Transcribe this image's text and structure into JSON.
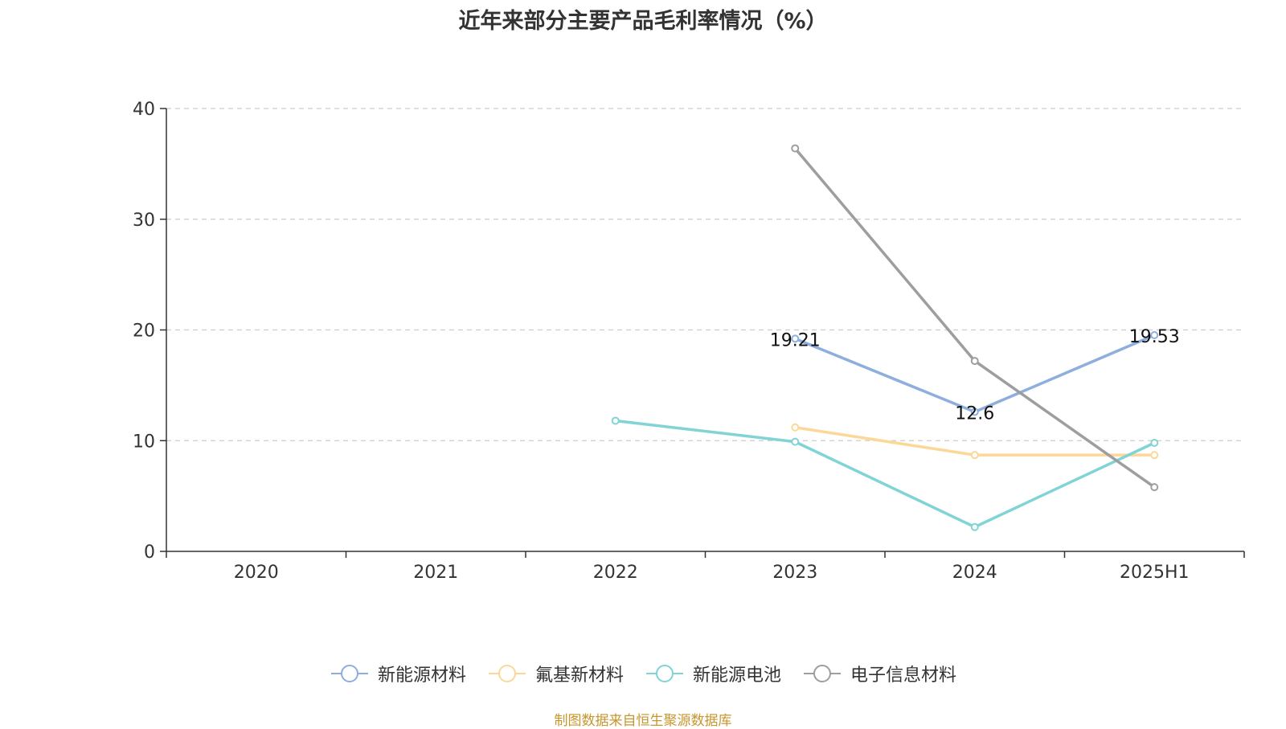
{
  "chart_data": {
    "type": "line",
    "title": "近年来部分主要产品毛利率情况（%）",
    "xlabel": "",
    "ylabel": "",
    "categories": [
      "2020",
      "2021",
      "2022",
      "2023",
      "2024",
      "2025H1"
    ],
    "ylim": [
      0,
      40
    ],
    "yticks": [
      0,
      10,
      20,
      30,
      40
    ],
    "grid": true,
    "legend_position": "bottom",
    "series": [
      {
        "name": "新能源材料",
        "color": "#8eaedd",
        "values": [
          null,
          null,
          null,
          19.21,
          12.6,
          19.53
        ],
        "labels": [
          null,
          null,
          null,
          "19.21",
          "12.6",
          "19.53"
        ]
      },
      {
        "name": "氟基新材料",
        "color": "#fcd898",
        "values": [
          null,
          null,
          null,
          11.2,
          8.7,
          8.7
        ],
        "labels": [
          null,
          null,
          null,
          null,
          null,
          null
        ]
      },
      {
        "name": "新能源电池",
        "color": "#80d4d6",
        "values": [
          null,
          null,
          11.8,
          9.9,
          2.2,
          9.8
        ],
        "labels": [
          null,
          null,
          null,
          null,
          null,
          null
        ]
      },
      {
        "name": "电子信息材料",
        "color": "#9e9e9e",
        "values": [
          null,
          null,
          null,
          36.4,
          17.2,
          5.8
        ],
        "labels": [
          null,
          null,
          null,
          null,
          null,
          null
        ]
      }
    ]
  },
  "source": "制图数据来自恒生聚源数据库"
}
